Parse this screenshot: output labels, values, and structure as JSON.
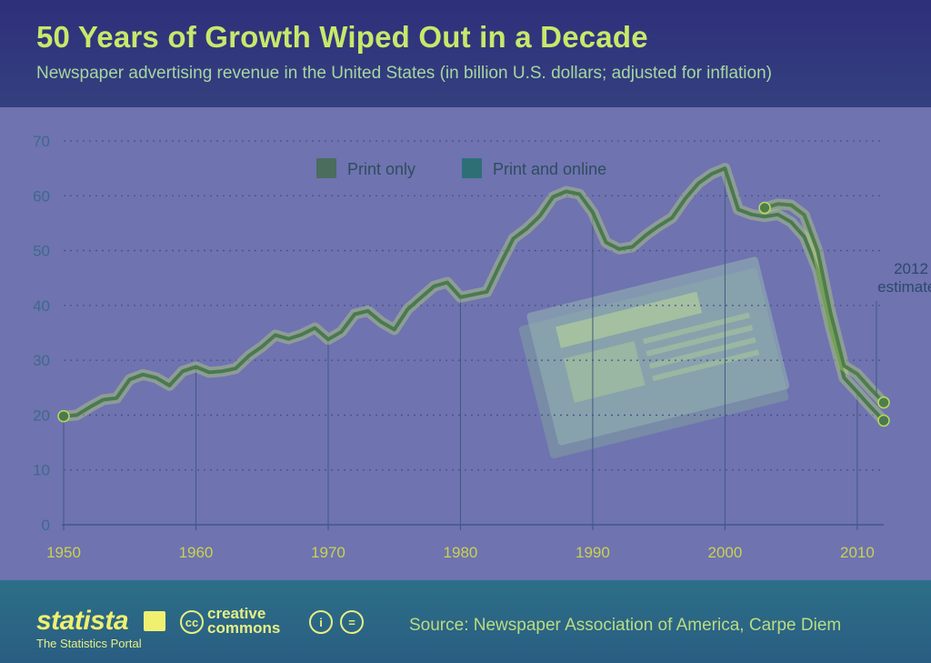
{
  "header": {
    "title": "50 Years of Growth Wiped Out in a Decade",
    "subtitle": "Newspaper advertising revenue in the United States (in billion U.S. dollars; adjusted for inflation)"
  },
  "footer": {
    "brand": "statista",
    "brand_tagline": "The Statistics Portal",
    "cc_label": "creative\ncommons",
    "source": "Source: Newspaper Association of America, Carpe Diem"
  },
  "colors": {
    "print_only": "#4a7a4e",
    "print_and_online": "#4f7e4a",
    "grid": "#4b4f8a",
    "axis_text": "#3d6a8a"
  },
  "icons": [
    "statista-logo-icon",
    "creative-commons-icon",
    "attribution-icon",
    "no-derivatives-icon",
    "newspaper-illustration"
  ],
  "chart_data": {
    "type": "line",
    "title": "50 Years of Growth Wiped Out in a Decade",
    "xlabel": "",
    "ylabel": "",
    "xlim": [
      1950,
      2012
    ],
    "ylim": [
      0,
      70
    ],
    "x_ticks": [
      1950,
      1960,
      1970,
      1980,
      1990,
      2000,
      2010
    ],
    "y_ticks": [
      0,
      10,
      20,
      30,
      40,
      50,
      60,
      70
    ],
    "grid": true,
    "legend_position": "top",
    "annotation": {
      "x": 2012,
      "text_line1": "2012",
      "text_line2": "estimated"
    },
    "series": [
      {
        "name": "Print only",
        "x": [
          1950,
          1951,
          1952,
          1953,
          1954,
          1955,
          1956,
          1957,
          1958,
          1959,
          1960,
          1961,
          1962,
          1963,
          1964,
          1965,
          1966,
          1967,
          1968,
          1969,
          1970,
          1971,
          1972,
          1973,
          1974,
          1975,
          1976,
          1977,
          1978,
          1979,
          1980,
          1981,
          1982,
          1983,
          1984,
          1985,
          1986,
          1987,
          1988,
          1989,
          1990,
          1991,
          1992,
          1993,
          1994,
          1995,
          1996,
          1997,
          1998,
          1999,
          2000,
          2001,
          2002,
          2003,
          2004,
          2005,
          2006,
          2007,
          2008,
          2009,
          2010,
          2011,
          2012
        ],
        "values": [
          19.8,
          20.0,
          21.5,
          22.8,
          23.1,
          26.5,
          27.4,
          26.8,
          25.4,
          28.0,
          28.8,
          27.8,
          28.0,
          28.5,
          30.8,
          32.5,
          34.6,
          33.9,
          34.7,
          35.9,
          33.8,
          35.2,
          38.4,
          39.0,
          37.0,
          35.6,
          39.3,
          41.4,
          43.5,
          44.2,
          41.5,
          42.0,
          42.5,
          47.5,
          52.2,
          54.0,
          56.3,
          59.8,
          60.8,
          60.3,
          57.0,
          51.5,
          50.3,
          50.7,
          52.8,
          54.5,
          56.0,
          59.5,
          62.3,
          64.0,
          65.0,
          57.5,
          56.6,
          56.2,
          56.6,
          55.2,
          52.5,
          46.5,
          35.8,
          26.8,
          24.2,
          21.5,
          19.0
        ]
      },
      {
        "name": "Print and online",
        "x": [
          2003,
          2004,
          2005,
          2006,
          2007,
          2008,
          2009,
          2010,
          2011,
          2012
        ],
        "values": [
          57.8,
          58.5,
          58.3,
          56.5,
          50.0,
          38.5,
          29.0,
          27.5,
          24.8,
          22.3
        ]
      }
    ]
  }
}
